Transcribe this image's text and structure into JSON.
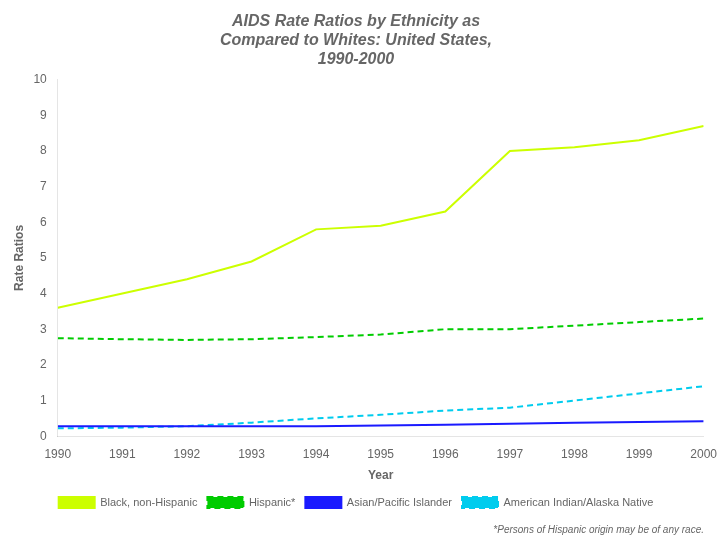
{
  "chart_data": {
    "type": "line",
    "title": [
      "AIDS Rate Ratios by Ethnicity as",
      "Compared to Whites: United States,",
      "1990-2000"
    ],
    "xlabel": "Year",
    "ylabel": "Rate Ratios",
    "footnote": "*Persons of Hispanic origin may be of any race.",
    "x": [
      1990,
      1991,
      1992,
      1993,
      1994,
      1995,
      1996,
      1997,
      1998,
      1999,
      2000
    ],
    "series": [
      {
        "name": "Black, non-Hispanic",
        "color": "#ccff00",
        "line_style": "solid",
        "values": [
          3.6,
          4.0,
          4.4,
          4.9,
          5.8,
          5.9,
          6.3,
          8.0,
          8.1,
          8.3,
          8.7
        ]
      },
      {
        "name": "Hispanic*",
        "color": "#00cc00",
        "line_style": "dashed",
        "values": [
          2.75,
          2.72,
          2.7,
          2.72,
          2.78,
          2.85,
          3.0,
          3.0,
          3.1,
          3.2,
          3.3
        ]
      },
      {
        "name": "Asian/Pacific Islander",
        "color": "#1a1aff",
        "line_style": "solid",
        "values": [
          0.28,
          0.28,
          0.28,
          0.28,
          0.28,
          0.3,
          0.32,
          0.35,
          0.38,
          0.4,
          0.42
        ]
      },
      {
        "name": "American Indian/Alaska Native",
        "color": "#00ccee",
        "line_style": "dashed",
        "values": [
          0.22,
          0.24,
          0.28,
          0.38,
          0.5,
          0.6,
          0.72,
          0.8,
          1.0,
          1.2,
          1.4
        ]
      }
    ],
    "xlim": [
      1990,
      2000
    ],
    "xticks": [
      1990,
      1991,
      1992,
      1993,
      1994,
      1995,
      1996,
      1997,
      1998,
      1999,
      2000
    ],
    "ylim": [
      0,
      10
    ],
    "yticks": [
      0,
      1,
      2,
      3,
      4,
      5,
      6,
      7,
      8,
      9,
      10
    ],
    "grid": false,
    "legend": "bottom"
  }
}
